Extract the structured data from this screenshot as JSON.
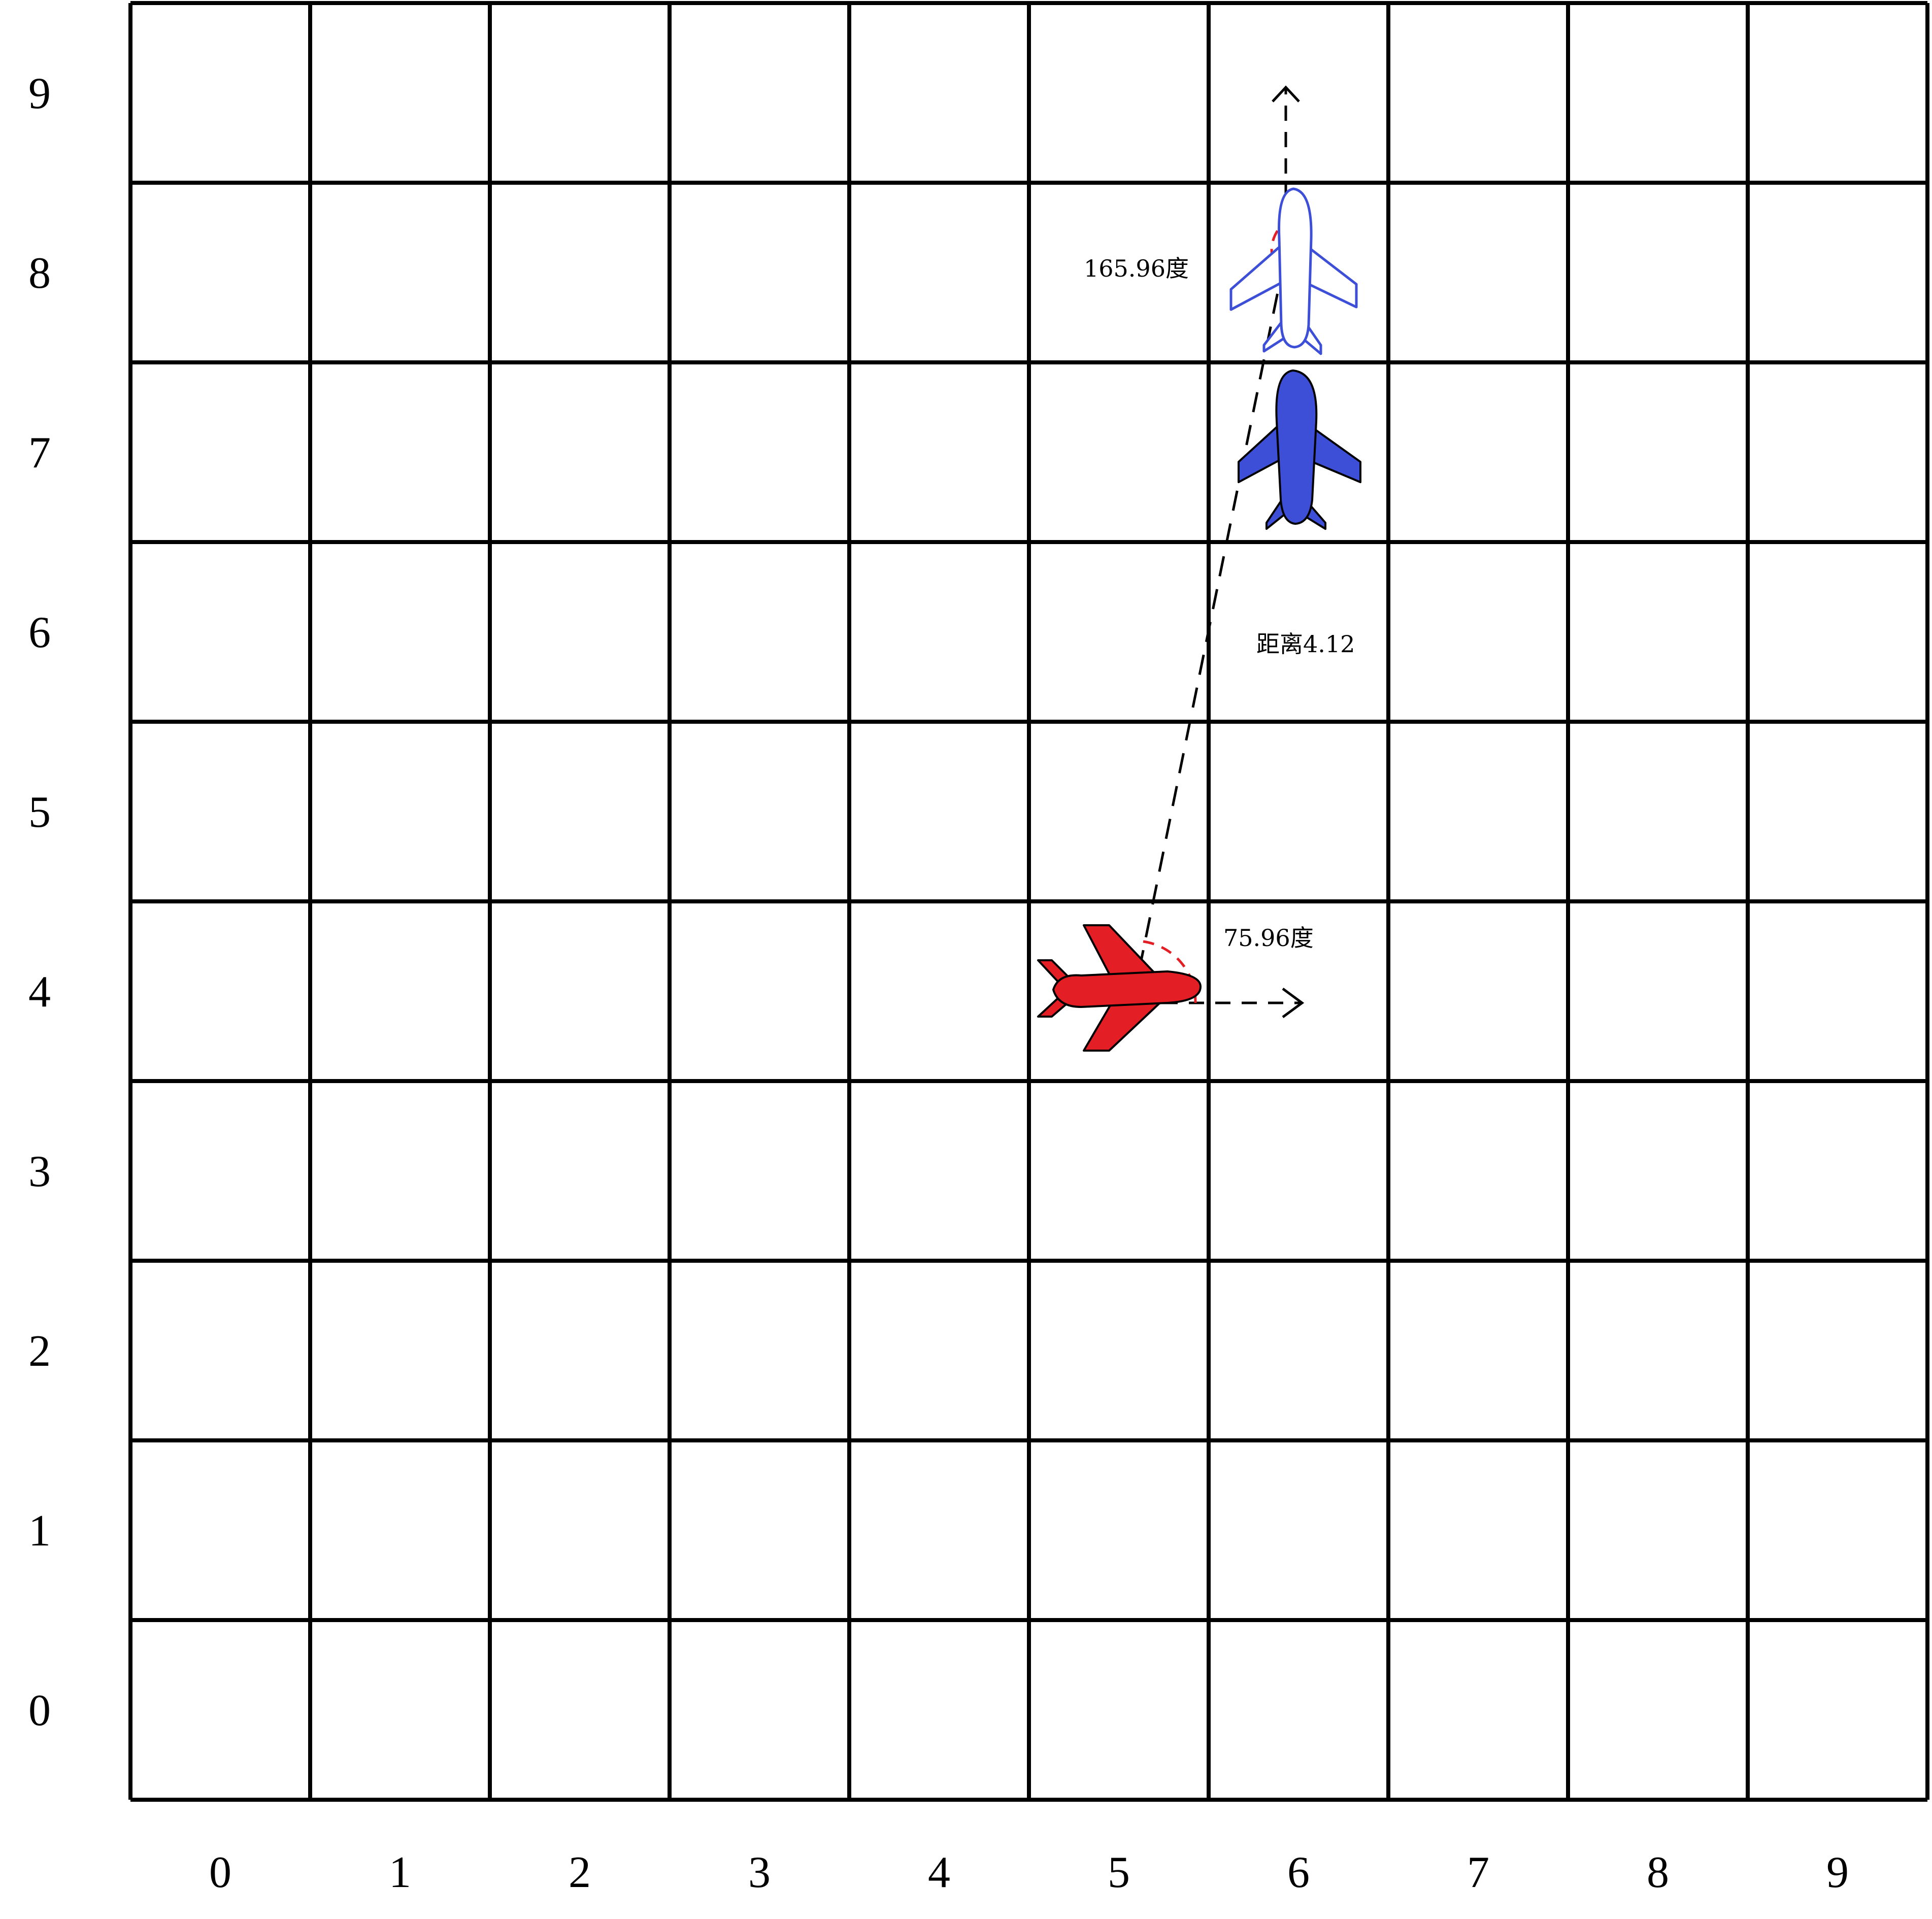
{
  "grid": {
    "x_ticks": [
      "0",
      "1",
      "2",
      "3",
      "4",
      "5",
      "6",
      "7",
      "8",
      "9"
    ],
    "y_ticks": [
      "0",
      "1",
      "2",
      "3",
      "4",
      "5",
      "6",
      "7",
      "8",
      "9"
    ]
  },
  "red_plane": {
    "cell": [
      5,
      4
    ],
    "heading": "east",
    "color": "#e31e24"
  },
  "blue_plane": {
    "cell": [
      6,
      7
    ],
    "heading": "north",
    "color": "#3d4fd6"
  },
  "ghost_plane": {
    "cell": [
      6,
      8
    ],
    "heading": "north",
    "color": "#3d4fd6"
  },
  "annotations": {
    "angle_red": "75.96度",
    "angle_ghost": "165.96度",
    "distance": "距离4.12"
  }
}
